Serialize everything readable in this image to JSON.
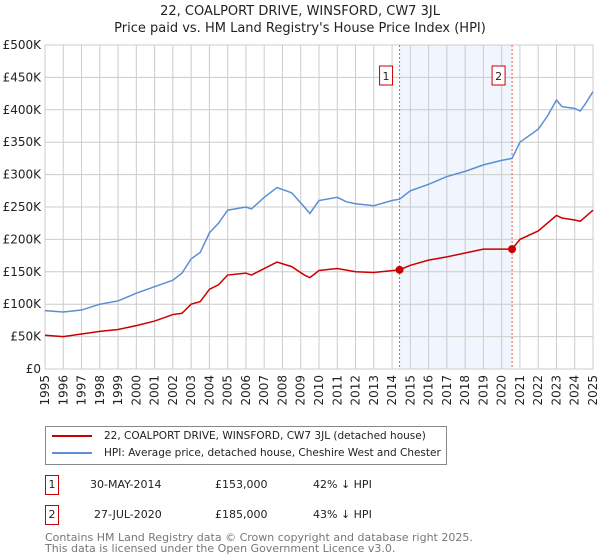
{
  "chart_data": {
    "type": "line",
    "title": "22, COALPORT DRIVE, WINSFORD, CW7 3JL",
    "subtitle": "Price paid vs. HM Land Registry's House Price Index (HPI)",
    "xlim": [
      1995,
      2025
    ],
    "ylim": [
      0,
      500000
    ],
    "grid": true,
    "yticks": [
      0,
      50000,
      100000,
      150000,
      200000,
      250000,
      300000,
      350000,
      400000,
      450000,
      500000
    ],
    "ytick_labels": [
      "£0",
      "£50K",
      "£100K",
      "£150K",
      "£200K",
      "£250K",
      "£300K",
      "£350K",
      "£400K",
      "£450K",
      "£500K"
    ],
    "xticks": [
      1995,
      1996,
      1997,
      1998,
      1999,
      2000,
      2001,
      2002,
      2003,
      2004,
      2005,
      2006,
      2007,
      2008,
      2009,
      2010,
      2011,
      2012,
      2013,
      2014,
      2015,
      2016,
      2017,
      2018,
      2019,
      2020,
      2021,
      2022,
      2023,
      2024,
      2025
    ],
    "series": [
      {
        "name": "22, COALPORT DRIVE, WINSFORD, CW7 3JL (detached house)",
        "color": "#cc0000",
        "x": [
          1995,
          1996,
          1997,
          1998,
          1999,
          2000,
          2001,
          2002,
          2002.5,
          2003,
          2003.5,
          2004,
          2004.5,
          2005,
          2006,
          2006.3,
          2007,
          2007.7,
          2008.5,
          2009.2,
          2009.5,
          2010,
          2011,
          2012,
          2013,
          2014.41,
          2015,
          2016,
          2017,
          2018,
          2019,
          2020.57,
          2021,
          2022,
          2023,
          2023.3,
          2024,
          2024.3,
          2025
        ],
        "y": [
          52000,
          50000,
          54000,
          58000,
          61000,
          67000,
          74000,
          84000,
          86000,
          100000,
          104000,
          123000,
          130000,
          145000,
          148000,
          145000,
          155000,
          165000,
          158000,
          145000,
          141000,
          152000,
          155000,
          150000,
          149000,
          153000,
          160000,
          168000,
          173000,
          179000,
          185000,
          185000,
          200000,
          213000,
          237000,
          233000,
          230000,
          228000,
          245000
        ]
      },
      {
        "name": "HPI: Average price, detached house, Cheshire West and Chester",
        "color": "#5b8fd4",
        "x": [
          1995,
          1996,
          1997,
          1998,
          1999,
          2000,
          2001,
          2002,
          2002.5,
          2003,
          2003.5,
          2004,
          2004.5,
          2005,
          2006,
          2006.3,
          2007,
          2007.7,
          2008.5,
          2009.2,
          2009.5,
          2010,
          2011,
          2011.5,
          2012,
          2013,
          2014,
          2014.41,
          2015,
          2016,
          2017,
          2018,
          2019,
          2020,
          2020.57,
          2021,
          2022,
          2022.5,
          2023,
          2023.3,
          2024,
          2024.3,
          2024.6,
          2025
        ],
        "y": [
          90000,
          88000,
          91000,
          100000,
          105000,
          117000,
          127000,
          137000,
          148000,
          170000,
          180000,
          210000,
          225000,
          245000,
          250000,
          247000,
          265000,
          280000,
          272000,
          250000,
          240000,
          260000,
          265000,
          258000,
          255000,
          252000,
          260000,
          262000,
          275000,
          285000,
          297000,
          305000,
          315000,
          322000,
          325000,
          350000,
          370000,
          390000,
          415000,
          405000,
          402000,
          398000,
          410000,
          428000
        ]
      }
    ],
    "annotations": [
      {
        "label": "1",
        "x": 2014.41,
        "y": 153000
      },
      {
        "label": "2",
        "x": 2020.57,
        "y": 185000
      }
    ],
    "shaded_range": [
      2014.41,
      2020.57
    ],
    "legend_position": "bottom"
  },
  "transactions": [
    {
      "num": "1",
      "date": "30-MAY-2014",
      "price": "£153,000",
      "hpi": "42% ↓ HPI"
    },
    {
      "num": "2",
      "date": "27-JUL-2020",
      "price": "£185,000",
      "hpi": "43% ↓ HPI"
    }
  ],
  "footer": [
    "Contains HM Land Registry data © Crown copyright and database right 2025.",
    "This data is licensed under the Open Government Licence v3.0."
  ]
}
